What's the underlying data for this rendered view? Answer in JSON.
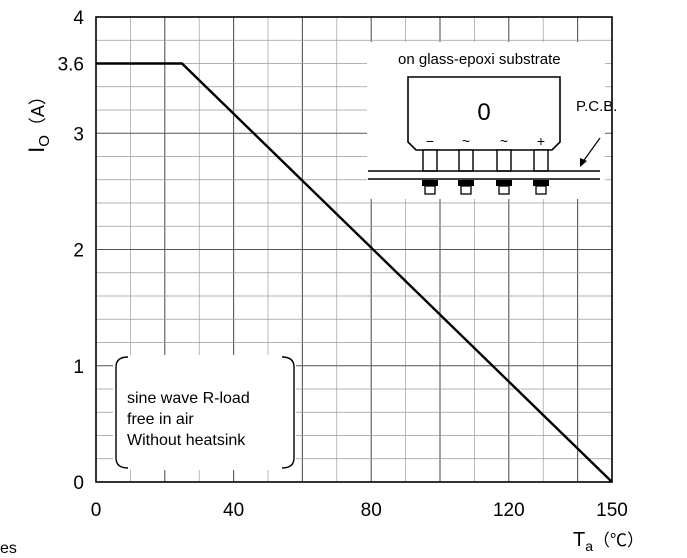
{
  "chart_data": {
    "type": "line",
    "xlabel": "Ta",
    "xlabel_main": "T",
    "xlabel_sub": "a",
    "xunit": "（℃）",
    "ylabel_main": "I",
    "ylabel_sub": "O",
    "yunit": "（A）",
    "xlim": [
      0,
      150
    ],
    "ylim": [
      0,
      4
    ],
    "xticks": [
      "0",
      "40",
      "80",
      "120",
      "150"
    ],
    "xtick_values": [
      0,
      40,
      80,
      120,
      150
    ],
    "yticks": [
      "0",
      "1",
      "2",
      "3",
      "3.6",
      "4"
    ],
    "ytick_values": [
      0,
      1,
      2,
      3,
      3.6,
      4
    ],
    "grid": true,
    "series": [
      {
        "x": [
          0,
          25,
          150
        ],
        "y": [
          3.6,
          3.6,
          0
        ]
      }
    ],
    "annotations": {
      "conditions": [
        "sine wave R-load",
        "free in air",
        "Without heatsink"
      ],
      "substrate": "on glass-epoxi substrate",
      "pcb": "P.C.B.",
      "device_mark": "0",
      "pins": [
        "−",
        "~",
        "~",
        "+"
      ]
    },
    "footer_fragment": "es"
  }
}
